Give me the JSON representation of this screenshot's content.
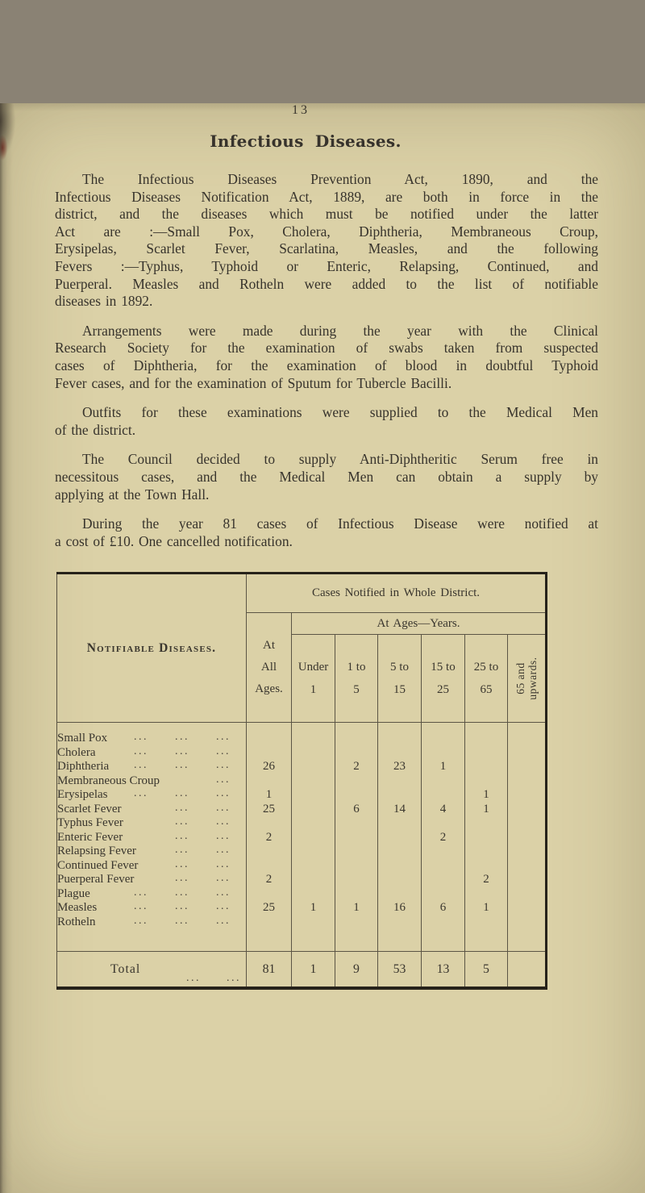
{
  "colors": {
    "paper": "#dbd1a7",
    "ink": "#37332c",
    "table_line": "#5b5545",
    "table_border": "#26221a"
  },
  "page": {
    "number": "13",
    "title": "Infectious Diseases.",
    "paragraphs": [
      [
        "The Infectious Diseases Prevention Act, 1890, and the",
        "Infectious Diseases Notification Act, 1889, are both in force in the",
        "district, and the diseases which must be notified under the latter",
        "Act are :—Small Pox, Cholera, Diphtheria, Membraneous Croup,",
        "Erysipelas, Scarlet Fever, Scarlatina, Measles, and the following",
        "Fevers :—Typhus, Typhoid or Enteric, Relapsing, Continued, and",
        "Puerperal.  Measles and Rotheln were added to the list of notifiable",
        "diseases in 1892."
      ],
      [
        "Arrangements were made during the year with the Clinical",
        "Research Society for the examination of swabs taken from suspected",
        "cases of Diphtheria, for the examination of blood in doubtful Typhoid",
        "Fever cases, and for the examination of Sputum for Tubercle Bacilli."
      ],
      [
        "Outfits for these examinations were supplied to the Medical Men",
        "of the district."
      ],
      [
        "The Council decided to supply Anti-Diphtheritic Serum free in",
        "necessitous cases, and the Medical Men can obtain a supply by",
        "applying at the Town Hall."
      ],
      [
        "During the year 81 cases of Infectious Disease were notified at",
        "a cost of £10.  One cancelled notification."
      ]
    ]
  },
  "table": {
    "header": {
      "diseases_label": "Notifiable Diseases.",
      "span_label": "Cases Notified in Whole District.",
      "all_ages_label": "At\nAll\nAges.",
      "ages_span_label": "At Ages—Years.",
      "age_columns": [
        "Under\n1",
        "1 to\n5",
        "5 to\n15",
        "15 to\n25",
        "25 to\n65"
      ],
      "last_column_rotated": "65 and\nupwards."
    },
    "rows": [
      {
        "label": "Small Pox",
        "dots": 3,
        "values": [
          "",
          "",
          "",
          "",
          "",
          "",
          ""
        ]
      },
      {
        "label": "Cholera",
        "dots": 3,
        "values": [
          "",
          "",
          "",
          "",
          "",
          "",
          ""
        ]
      },
      {
        "label": "Diphtheria",
        "dots": 3,
        "values": [
          "26",
          "",
          "2",
          "23",
          "1",
          "",
          ""
        ]
      },
      {
        "label": "Membraneous Croup",
        "dots": 1,
        "values": [
          "",
          "",
          "",
          "",
          "",
          "",
          ""
        ]
      },
      {
        "label": "Erysipelas",
        "dots": 3,
        "values": [
          "1",
          "",
          "",
          "",
          "",
          "1",
          ""
        ]
      },
      {
        "label": "Scarlet Fever",
        "dots": 2,
        "values": [
          "25",
          "",
          "6",
          "14",
          "4",
          "1",
          ""
        ]
      },
      {
        "label": "Typhus Fever",
        "dots": 2,
        "values": [
          "",
          "",
          "",
          "",
          "",
          "",
          ""
        ]
      },
      {
        "label": "Enteric Fever",
        "dots": 2,
        "values": [
          "2",
          "",
          "",
          "",
          "2",
          "",
          ""
        ]
      },
      {
        "label": "Relapsing Fever",
        "dots": 2,
        "values": [
          "",
          "",
          "",
          "",
          "",
          "",
          ""
        ]
      },
      {
        "label": "Continued Fever",
        "dots": 2,
        "values": [
          "",
          "",
          "",
          "",
          "",
          "",
          ""
        ]
      },
      {
        "label": "Puerperal Fever",
        "dots": 2,
        "values": [
          "2",
          "",
          "",
          "",
          "",
          "2",
          ""
        ]
      },
      {
        "label": "Plague",
        "dots": 3,
        "values": [
          "",
          "",
          "",
          "",
          "",
          "",
          ""
        ]
      },
      {
        "label": "Measles",
        "dots": 3,
        "values": [
          "25",
          "1",
          "1",
          "16",
          "6",
          "1",
          ""
        ]
      },
      {
        "label": "Rotheln",
        "dots": 3,
        "values": [
          "",
          "",
          "",
          "",
          "",
          "",
          ""
        ]
      }
    ],
    "total": {
      "label": "Total",
      "dots": 2,
      "values": [
        "81",
        "1",
        "9",
        "53",
        "13",
        "5",
        ""
      ]
    }
  }
}
